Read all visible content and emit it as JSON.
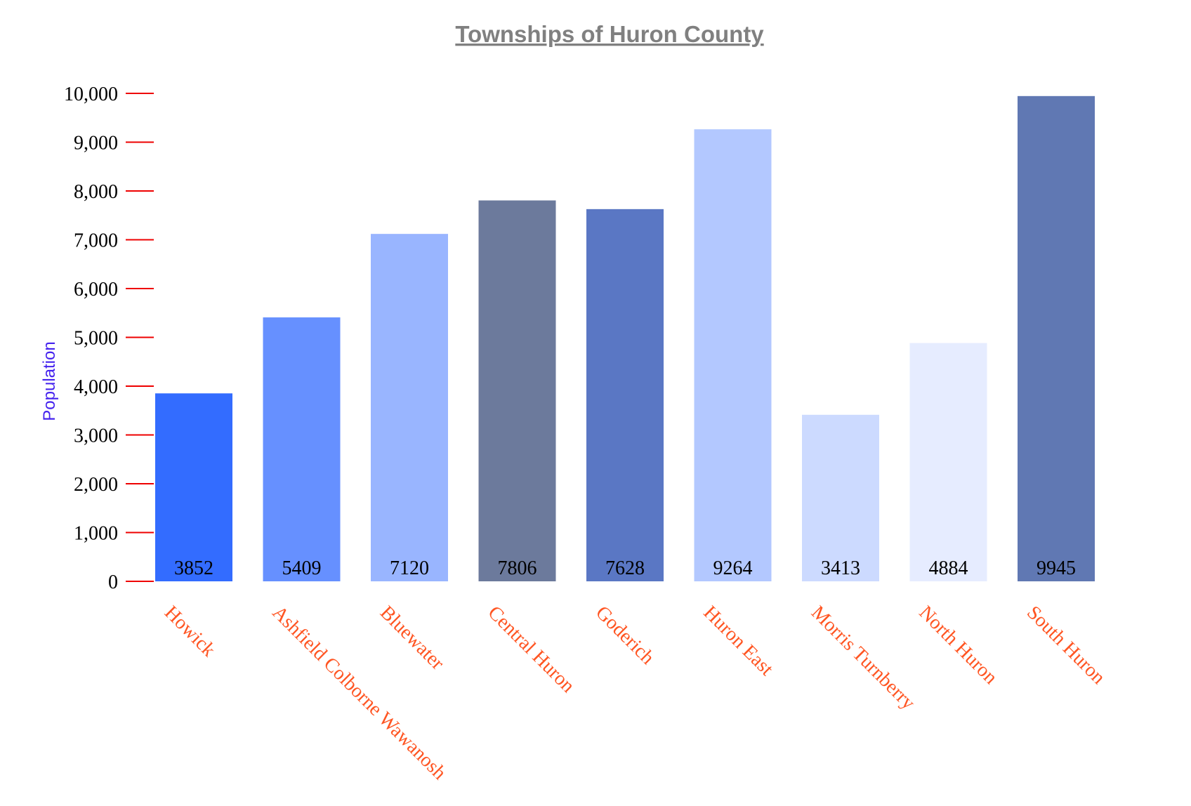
{
  "chart_data": {
    "type": "bar",
    "title": "Townships of Huron County",
    "ylabel": "Population",
    "xlabel": "",
    "ylim": [
      0,
      10000
    ],
    "yticks": [
      0,
      1000,
      2000,
      3000,
      4000,
      5000,
      6000,
      7000,
      8000,
      9000,
      10000
    ],
    "ytick_labels": [
      "0",
      "1,000",
      "2,000",
      "3,000",
      "4,000",
      "5,000",
      "6,000",
      "7,000",
      "8,000",
      "9,000",
      "10,000"
    ],
    "categories": [
      "Howick",
      "Ashfield Colborne Wawanosh",
      "Bluewater",
      "Central Huron",
      "Goderich",
      "Huron East",
      "Morris Turnberry",
      "North Huron",
      "South Huron"
    ],
    "values": [
      3852,
      5409,
      7120,
      7806,
      7628,
      9264,
      3413,
      4884,
      9945
    ],
    "data_labels": [
      "3852",
      "5409",
      "7120",
      "7806",
      "7628",
      "9264",
      "3413",
      "4884",
      "9945"
    ],
    "bar_colors": [
      "#336cff",
      "#6690ff",
      "#99b5ff",
      "#6c7a9c",
      "#5a77c4",
      "#b3c8ff",
      "#ccdaff",
      "#e6ecff",
      "#6078b3"
    ],
    "grid": false,
    "colors": {
      "title": "#808080",
      "ylabel": "#4422ee",
      "tick_marks": "#ee0000",
      "category_labels": "#ff5522"
    }
  }
}
